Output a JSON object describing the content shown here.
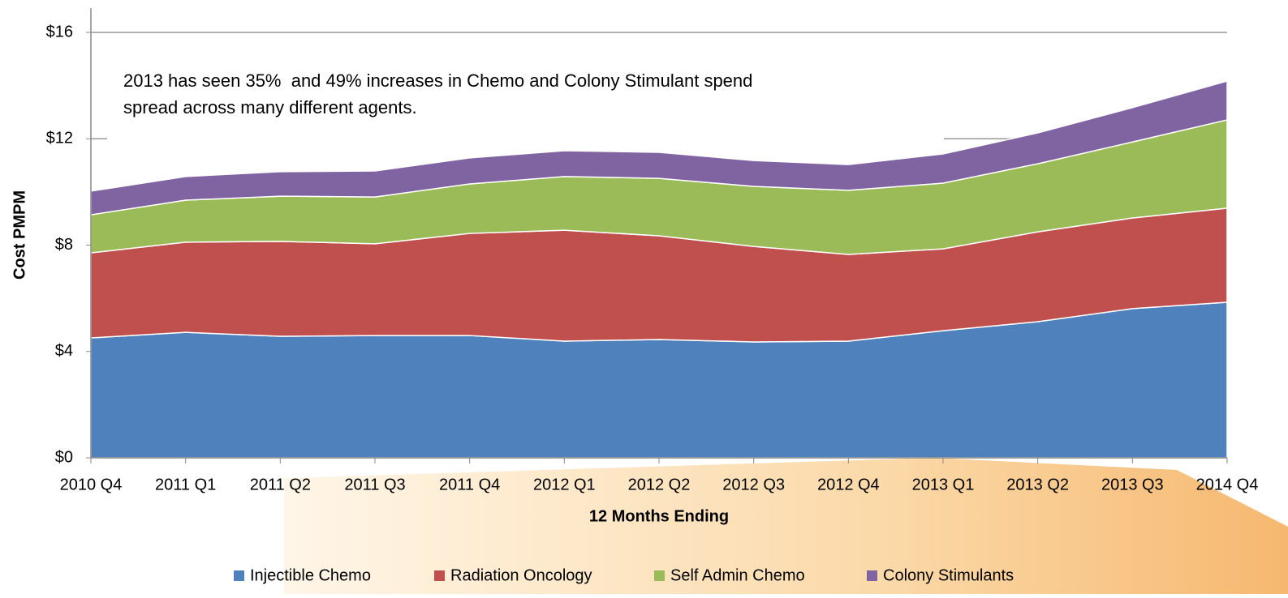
{
  "chart_data": {
    "type": "stacked-area",
    "annotation": [
      "2013 has seen 35%  and 49% increases in Chemo and Colony Stimulant spend",
      "spread across many different agents."
    ],
    "xlabel": "12 Months Ending",
    "ylabel": "Cost PMPM",
    "categories": [
      "2010 Q4",
      "2011 Q1",
      "2011 Q2",
      "2011 Q3",
      "2011 Q4",
      "2012 Q1",
      "2012 Q2",
      "2012 Q3",
      "2012 Q4",
      "2013 Q1",
      "2013 Q2",
      "2013 Q3",
      "2014 Q4"
    ],
    "series": [
      {
        "name": "Injectible Chemo",
        "color": "#4f81bd",
        "values": [
          4.51,
          4.72,
          4.57,
          4.6,
          4.6,
          4.39,
          4.45,
          4.36,
          4.39,
          4.78,
          5.12,
          5.61,
          5.85
        ]
      },
      {
        "name": "Radiation Oncology",
        "color": "#c0504d",
        "values": [
          3.2,
          3.39,
          3.57,
          3.45,
          3.84,
          4.17,
          3.9,
          3.59,
          3.26,
          3.08,
          3.38,
          3.41,
          3.54
        ]
      },
      {
        "name": "Self Admin Chemo",
        "color": "#9bbb59",
        "values": [
          1.43,
          1.58,
          1.7,
          1.76,
          1.86,
          2.02,
          2.16,
          2.26,
          2.41,
          2.47,
          2.56,
          2.86,
          3.32
        ]
      },
      {
        "name": "Colony Stimulants",
        "color": "#8064a2",
        "values": [
          0.89,
          0.89,
          0.92,
          0.98,
          0.98,
          0.97,
          0.98,
          0.97,
          0.97,
          1.1,
          1.16,
          1.29,
          1.46
        ]
      }
    ],
    "ylim": [
      0,
      16
    ],
    "yticks": [
      {
        "value": 0,
        "label": "$0"
      },
      {
        "value": 4,
        "label": "$4"
      },
      {
        "value": 8,
        "label": "$8"
      },
      {
        "value": 12,
        "label": "$12"
      },
      {
        "value": 16,
        "label": "$16"
      }
    ],
    "grid": true,
    "legend": "bottom"
  }
}
